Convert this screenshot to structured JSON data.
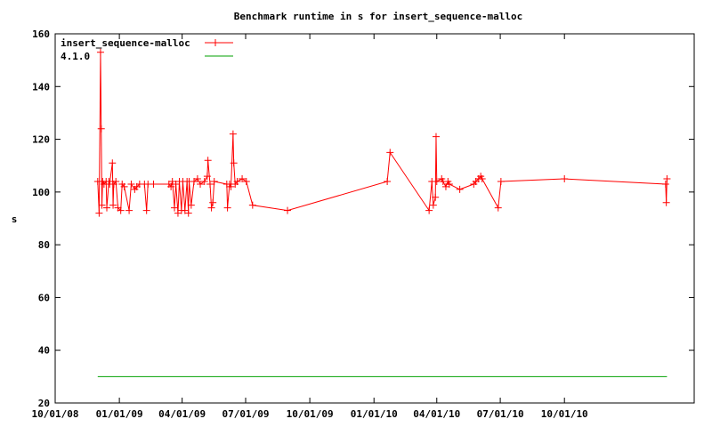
{
  "chart_data": {
    "type": "line",
    "title": "Benchmark runtime in s for insert_sequence-malloc",
    "xlabel": "",
    "ylabel": "s",
    "xlim": [
      "2008-10-01",
      "2011-04-05"
    ],
    "ylim": [
      20,
      160
    ],
    "yticks": [
      20,
      40,
      60,
      80,
      100,
      120,
      140,
      160
    ],
    "xticks": [
      {
        "date": "2008-10-01",
        "label": "10/01/08"
      },
      {
        "date": "2009-01-01",
        "label": "01/01/09"
      },
      {
        "date": "2009-04-01",
        "label": "04/01/09"
      },
      {
        "date": "2009-07-01",
        "label": "07/01/09"
      },
      {
        "date": "2009-10-01",
        "label": "10/01/09"
      },
      {
        "date": "2010-01-01",
        "label": "01/01/10"
      },
      {
        "date": "2010-04-01",
        "label": "04/01/10"
      },
      {
        "date": "2010-07-01",
        "label": "07/01/10"
      },
      {
        "date": "2010-10-01",
        "label": "10/01/10"
      }
    ],
    "grid": false,
    "legend_position": "top-left",
    "series": [
      {
        "name": "insert_sequence-malloc",
        "color": "#ff0000",
        "marker": "plus",
        "points": [
          [
            "2008-12-01",
            104
          ],
          [
            "2008-12-03",
            92
          ],
          [
            "2008-12-05",
            153
          ],
          [
            "2008-12-06",
            124
          ],
          [
            "2008-12-07",
            95
          ],
          [
            "2008-12-08",
            104
          ],
          [
            "2008-12-10",
            103
          ],
          [
            "2008-12-13",
            104
          ],
          [
            "2008-12-14",
            94
          ],
          [
            "2008-12-17",
            104
          ],
          [
            "2008-12-18",
            103
          ],
          [
            "2008-12-22",
            111
          ],
          [
            "2008-12-23",
            95
          ],
          [
            "2008-12-24",
            103
          ],
          [
            "2008-12-27",
            104
          ],
          [
            "2008-12-30",
            94
          ],
          [
            "2009-01-03",
            93
          ],
          [
            "2009-01-05",
            103
          ],
          [
            "2009-01-08",
            102
          ],
          [
            "2009-01-15",
            93
          ],
          [
            "2009-01-18",
            103
          ],
          [
            "2009-01-23",
            101
          ],
          [
            "2009-01-26",
            102
          ],
          [
            "2009-01-30",
            103
          ],
          [
            "2009-02-06",
            103
          ],
          [
            "2009-02-09",
            93
          ],
          [
            "2009-02-11",
            103
          ],
          [
            "2009-02-19",
            103
          ],
          [
            "2009-03-13",
            103
          ],
          [
            "2009-03-16",
            102
          ],
          [
            "2009-03-18",
            104
          ],
          [
            "2009-03-21",
            94
          ],
          [
            "2009-03-23",
            103
          ],
          [
            "2009-03-26",
            92
          ],
          [
            "2009-03-28",
            104
          ],
          [
            "2009-03-31",
            93
          ],
          [
            "2009-04-02",
            104
          ],
          [
            "2009-04-05",
            93
          ],
          [
            "2009-04-08",
            104
          ],
          [
            "2009-04-10",
            92
          ],
          [
            "2009-04-11",
            104
          ],
          [
            "2009-04-14",
            95
          ],
          [
            "2009-04-18",
            104
          ],
          [
            "2009-04-23",
            105
          ],
          [
            "2009-04-27",
            103
          ],
          [
            "2009-05-03",
            104
          ],
          [
            "2009-05-07",
            106
          ],
          [
            "2009-05-08",
            112
          ],
          [
            "2009-05-11",
            103
          ],
          [
            "2009-05-13",
            94
          ],
          [
            "2009-05-15",
            96
          ],
          [
            "2009-05-17",
            104
          ],
          [
            "2009-06-04",
            103
          ],
          [
            "2009-06-05",
            94
          ],
          [
            "2009-06-08",
            103
          ],
          [
            "2009-06-10",
            102
          ],
          [
            "2009-06-13",
            122
          ],
          [
            "2009-06-14",
            111
          ],
          [
            "2009-06-16",
            103
          ],
          [
            "2009-06-19",
            104
          ],
          [
            "2009-06-26",
            105
          ],
          [
            "2009-07-02",
            104
          ],
          [
            "2009-07-11",
            95
          ],
          [
            "2009-08-30",
            93
          ],
          [
            "2010-01-20",
            104
          ],
          [
            "2010-01-24",
            115
          ],
          [
            "2010-03-21",
            93
          ],
          [
            "2010-03-25",
            104
          ],
          [
            "2010-03-27",
            95
          ],
          [
            "2010-03-30",
            98
          ],
          [
            "2010-03-31",
            121
          ],
          [
            "2010-04-01",
            104
          ],
          [
            "2010-04-08",
            105
          ],
          [
            "2010-04-10",
            104
          ],
          [
            "2010-04-14",
            102
          ],
          [
            "2010-04-17",
            104
          ],
          [
            "2010-04-19",
            103
          ],
          [
            "2010-05-04",
            101
          ],
          [
            "2010-05-24",
            103
          ],
          [
            "2010-05-27",
            104
          ],
          [
            "2010-05-31",
            105
          ],
          [
            "2010-06-03",
            106
          ],
          [
            "2010-06-05",
            105
          ],
          [
            "2010-06-28",
            94
          ],
          [
            "2010-07-02",
            104
          ],
          [
            "2010-10-01",
            105
          ],
          [
            "2011-02-23",
            103
          ],
          [
            "2011-02-24",
            96
          ],
          [
            "2011-02-25",
            105
          ]
        ]
      },
      {
        "name": "4.1.0",
        "color": "#00a000",
        "marker": "none",
        "points": [
          [
            "2008-12-01",
            30
          ],
          [
            "2011-02-25",
            30
          ]
        ]
      }
    ]
  }
}
